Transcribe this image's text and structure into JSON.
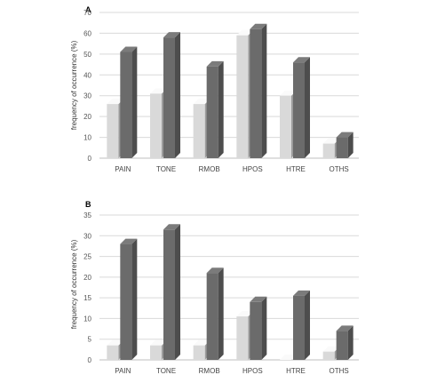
{
  "chart_data": [
    {
      "type": "bar",
      "panel_label": "A",
      "title": "",
      "xlabel": "",
      "ylabel": "frequency of occurrence (%)",
      "ylim": [
        0,
        70
      ],
      "yticks": [
        "0",
        "10",
        "20",
        "30",
        "40",
        "50",
        "60",
        "70"
      ],
      "grid": true,
      "style": "3d",
      "categories": [
        "PAIN",
        "TONE",
        "RMOB",
        "HPOS",
        "HTRE",
        "OTHS"
      ],
      "series": [
        {
          "values": [
            26,
            31,
            26,
            59,
            30,
            7
          ],
          "color": "#d9d9d9"
        },
        {
          "values": [
            51,
            58,
            44,
            62,
            46,
            10
          ],
          "color": "#6b6b6b"
        }
      ]
    },
    {
      "type": "bar",
      "panel_label": "B",
      "title": "",
      "xlabel": "",
      "ylabel": "frequency of occurrence (%)",
      "ylim": [
        0,
        35
      ],
      "yticks": [
        "0",
        "5",
        "10",
        "15",
        "20",
        "25",
        "30",
        "35"
      ],
      "grid": true,
      "style": "3d",
      "categories": [
        "PAIN",
        "TONE",
        "RMOB",
        "HPOS",
        "HTRE",
        "OTHS"
      ],
      "series": [
        {
          "values": [
            3.5,
            3.5,
            3.5,
            10.5,
            0,
            2
          ],
          "color": "#d9d9d9"
        },
        {
          "values": [
            28,
            31.5,
            21,
            14,
            15.5,
            7
          ],
          "color": "#6b6b6b"
        }
      ]
    }
  ]
}
